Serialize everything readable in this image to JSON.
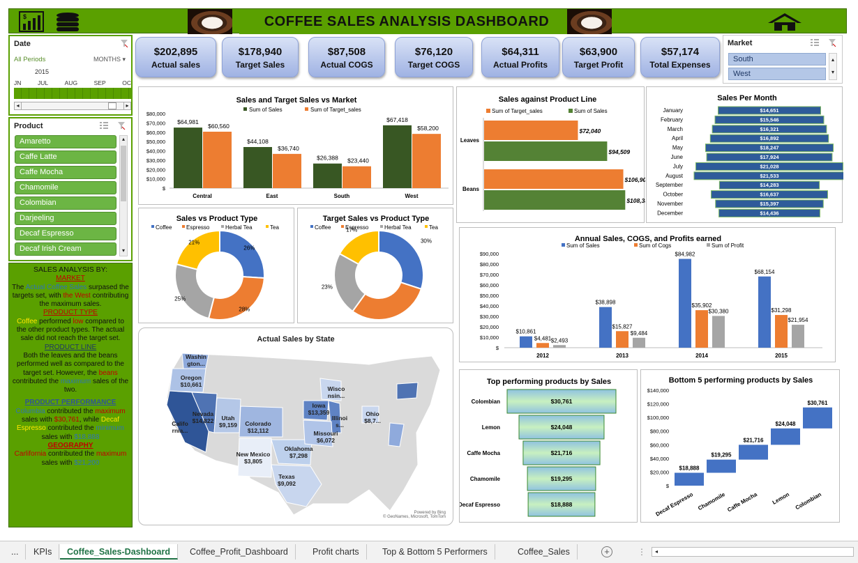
{
  "header": {
    "title": "COFFEE SALES ANALYSIS DASHBOARD",
    "left_icons": [
      "chart-icon",
      "database-icon"
    ],
    "right_icon": "home-icon"
  },
  "date_slicer": {
    "title": "Date",
    "all_periods": "All Periods",
    "period_unit": "MONTHS",
    "year": "2015",
    "months": [
      "JN",
      "JUL",
      "AUG",
      "SEP",
      "OC"
    ]
  },
  "product_slicer": {
    "title": "Product",
    "items": [
      "Amaretto",
      "Caffe Latte",
      "Caffe Mocha",
      "Chamomile",
      "Colombian",
      "Darjeeling",
      "Decaf Espresso",
      "Decaf Irish Cream"
    ]
  },
  "market_slicer": {
    "title": "Market",
    "items": [
      "South",
      "West"
    ]
  },
  "kpis": [
    {
      "value": "$202,895",
      "label": "Actual sales"
    },
    {
      "value": "$178,940",
      "label": "Target Sales"
    },
    {
      "value": "$87,508",
      "label": "Actual COGS"
    },
    {
      "value": "$76,120",
      "label": "Target COGS"
    },
    {
      "value": "$64,311",
      "label": "Actual Profits"
    },
    {
      "value": "$63,900",
      "label": "Target Profit"
    },
    {
      "value": "$57,174",
      "label": "Total Expenses"
    }
  ],
  "analysis": {
    "title": "SALES ANALYSIS BY:",
    "market_hdr": "MARKET",
    "market_1": "The ",
    "market_2": "Actual Coffee Sales",
    "market_3": " surpased the targets set, with ",
    "market_4": "the West",
    "market_5": " contributing the maximum sales.",
    "ptype_hdr": "PRODUCT TYPE",
    "ptype_1": "Coffee",
    "ptype_2": " performed ",
    "ptype_3": "low",
    "ptype_4": " compared to the other product types. The actual sale did not reach the target set.",
    "pline_hdr": "PRODUCT LINE",
    "pline_1": "Both the leaves and the beans performed well as compared to the target set. However, the ",
    "pline_2": "beans",
    "pline_3": " contributed the ",
    "pline_4": "maximum",
    "pline_5": " sales of the two.",
    "perf_hdr": "PRODUCT PERFORMANCE",
    "perf_1": "Columbia",
    "perf_2": " contributed the ",
    "perf_3": "maximum",
    "perf_4": " sales with ",
    "perf_5": "$30,761",
    "perf_6": ", while ",
    "perf_7": "Decaf Espresso",
    "perf_8": " contributed the ",
    "perf_9": "minimum",
    "perf_10": " sales with ",
    "perf_11": "$18,888",
    "geo_hdr": "GEOGRAPHY",
    "geo_1": "Carlifornia",
    "geo_2": " contributed the ",
    "geo_3": "maximum",
    "geo_4": " sales with ",
    "geo_5": "$21,200"
  },
  "map_panel": {
    "title": "Actual Sales by State",
    "credit_1": "Powered by Bing",
    "credit_2": "© GeoNames, Microsoft, TomTom",
    "labels": [
      {
        "name": "Washin gton...",
        "value": ""
      },
      {
        "name": "Oregon",
        "value": "$10,661"
      },
      {
        "name": "Califo rnia...",
        "value": ""
      },
      {
        "name": "Nevada",
        "value": "$14,822"
      },
      {
        "name": "Utah",
        "value": "$9,159"
      },
      {
        "name": "Colorado",
        "value": "$12,112"
      },
      {
        "name": "New Mexico",
        "value": "$3,805"
      },
      {
        "name": "Oklahoma",
        "value": "$7,298"
      },
      {
        "name": "Texas",
        "value": "$9,092"
      },
      {
        "name": "Iowa",
        "value": "$13,359"
      },
      {
        "name": "Illinoi s...",
        "value": ""
      },
      {
        "name": "Missouri",
        "value": "$6,072"
      },
      {
        "name": "Wisco nsin...",
        "value": ""
      },
      {
        "name": "Ohio",
        "value": "$8,7..."
      }
    ]
  },
  "tabs": [
    "...",
    "KPIs",
    "Coffee_Sales-Dashboard",
    "Coffee_Profit_Dashboard",
    "Profit charts",
    "Top & Bottom 5 Performers",
    "Coffee_Sales"
  ],
  "active_tab": "Coffee_Sales-Dashboard",
  "colors": {
    "green_header": "#5aa000",
    "dark_green": "#385723",
    "orange": "#ed7d31",
    "blue": "#4472c4",
    "gray": "#a5a5a5",
    "gold": "#ffc000"
  },
  "chart_data": [
    {
      "id": "market",
      "type": "bar",
      "title": "Sales and Target Sales vs Market",
      "categories": [
        "Central",
        "East",
        "South",
        "West"
      ],
      "series": [
        {
          "name": "Sum of Sales",
          "values": [
            64981,
            44108,
            26388,
            67418
          ]
        },
        {
          "name": "Sum of Target_sales",
          "values": [
            60560,
            36740,
            23440,
            58200
          ]
        }
      ],
      "data_labels": [
        [
          "$64,981",
          "$44,108",
          "$26,388",
          "$67,418"
        ],
        [
          "$60,560",
          "$36,740",
          "$23,440",
          "$58,200"
        ]
      ],
      "yticks": [
        "$80,000",
        "$70,000",
        "$60,000",
        "$50,000",
        "$40,000",
        "$30,000",
        "$20,000",
        "$10,000",
        "$"
      ],
      "ylim": [
        0,
        80000
      ],
      "legend": "top"
    },
    {
      "id": "productline",
      "type": "bar",
      "title": "Sales against Product Line",
      "categories": [
        "Leaves",
        "Beans"
      ],
      "series": [
        {
          "name": "Sum of Target_sales",
          "values": [
            72040,
            106900
          ]
        },
        {
          "name": "Sum of Sales",
          "values": [
            94509,
            108386
          ]
        }
      ],
      "data_labels": [
        [
          "$72,040",
          "$106,900"
        ],
        [
          "$94,509",
          "$108,386"
        ]
      ],
      "xlim": [
        0,
        120000
      ],
      "legend": "top"
    },
    {
      "id": "month",
      "type": "bar",
      "title": "Sales Per Month",
      "categories": [
        "January",
        "February",
        "March",
        "April",
        "May",
        "June",
        "July",
        "August",
        "September",
        "October",
        "November",
        "December"
      ],
      "values": [
        14651,
        15546,
        16321,
        16892,
        18247,
        17924,
        21028,
        21533,
        14283,
        16637,
        15397,
        14436
      ],
      "data_labels": [
        "$14,651",
        "$15,546",
        "$16,321",
        "$16,892",
        "$18,247",
        "$17,924",
        "$21,028",
        "$21,533",
        "$14,283",
        "$16,637",
        "$15,397",
        "$14,436"
      ]
    },
    {
      "id": "ptype_sales",
      "type": "pie",
      "title": "Sales vs Product Type",
      "categories": [
        "Coffee",
        "Espresso",
        "Herbal Tea",
        "Tea"
      ],
      "values": [
        26,
        28,
        25,
        21
      ],
      "data_labels": [
        "26%",
        "28%",
        "25%",
        "21%"
      ],
      "legend": "top"
    },
    {
      "id": "ptype_target",
      "type": "pie",
      "title": "Target Sales vs Product Type",
      "categories": [
        "Coffee",
        "Espresso",
        "Herbal Tea",
        "Tea"
      ],
      "values": [
        30,
        30,
        23,
        17
      ],
      "data_labels": [
        "30%",
        "30%",
        "23%",
        "17%"
      ],
      "legend": "top"
    },
    {
      "id": "annual",
      "type": "bar",
      "title": "Annual Sales, COGS, and Profits earned",
      "categories": [
        "2012",
        "2013",
        "2014",
        "2015"
      ],
      "series": [
        {
          "name": "Sum of Sales",
          "values": [
            10861,
            38898,
            84982,
            68154
          ]
        },
        {
          "name": "Sum of Cogs",
          "values": [
            4481,
            15827,
            35902,
            31298
          ]
        },
        {
          "name": "Sum of Profit",
          "values": [
            2493,
            9484,
            30380,
            21954
          ]
        }
      ],
      "data_labels": [
        [
          "$10,861",
          "$38,898",
          "$84,982",
          "$68,154"
        ],
        [
          "$4,481",
          "$15,827",
          "$35,902",
          "$31,298"
        ],
        [
          "$2,493",
          "$9,484",
          "$30,380",
          "$21,954"
        ]
      ],
      "yticks": [
        "$90,000",
        "$80,000",
        "$70,000",
        "$60,000",
        "$50,000",
        "$40,000",
        "$30,000",
        "$20,000",
        "$10,000",
        "$"
      ],
      "ylim": [
        0,
        90000
      ],
      "legend": "top"
    },
    {
      "id": "top5",
      "type": "bar",
      "title": "Top performing products by Sales",
      "categories": [
        "Colombian",
        "Lemon",
        "Caffe Mocha",
        "Chamomile",
        "Decaf Espresso"
      ],
      "values": [
        30761,
        24048,
        21716,
        19295,
        18888
      ],
      "data_labels": [
        "$30,761",
        "$24,048",
        "$21,716",
        "$19,295",
        "$18,888"
      ]
    },
    {
      "id": "bottom5",
      "type": "bar",
      "title": "Bottom 5 performing products by Sales",
      "categories": [
        "Decaf Espresso",
        "Chamomile",
        "Caffe Mocha",
        "Lemon",
        "Colombian"
      ],
      "values": [
        18888,
        19295,
        21716,
        24048,
        30761
      ],
      "data_labels": [
        "$18,888",
        "$19,295",
        "$21,716",
        "$24,048",
        "$30,761"
      ],
      "yticks": [
        "$140,000",
        "$120,000",
        "$100,000",
        "$80,000",
        "$60,000",
        "$40,000",
        "$20,000",
        "$"
      ],
      "ylim": [
        0,
        140000
      ]
    }
  ]
}
